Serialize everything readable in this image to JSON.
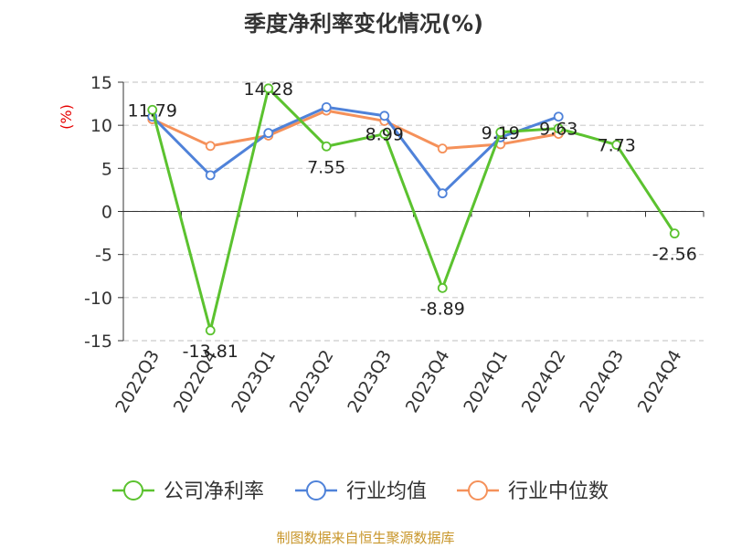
{
  "chart_data": {
    "type": "line",
    "title": "季度净利率变化情况(%)",
    "ylabel": "(%)",
    "xlabel": "",
    "categories": [
      "2022Q3",
      "2022Q4",
      "2023Q1",
      "2023Q2",
      "2023Q3",
      "2023Q4",
      "2024Q1",
      "2024Q2",
      "2024Q3",
      "2024Q4"
    ],
    "ylim": [
      -15,
      15
    ],
    "yticks": [
      15,
      10,
      5,
      0,
      -5,
      -10,
      -15
    ],
    "grid": true,
    "legend_position": "bottom",
    "series": [
      {
        "name": "公司净利率",
        "color": "#5bc22f",
        "values": [
          11.79,
          -13.81,
          14.28,
          7.55,
          8.99,
          -8.89,
          9.19,
          9.63,
          7.73,
          -2.56
        ],
        "labels": [
          "11.79",
          "-13.81",
          "14.28",
          "7.55",
          "8.99",
          "-8.89",
          "9.19",
          "9.63",
          "7.73",
          "-2.56"
        ]
      },
      {
        "name": "行业均值",
        "color": "#4f82d9",
        "values": [
          11.0,
          4.2,
          9.1,
          12.1,
          11.1,
          2.1,
          8.6,
          11.0,
          null,
          null
        ]
      },
      {
        "name": "行业中位数",
        "color": "#f5915a",
        "values": [
          10.7,
          7.6,
          8.8,
          11.7,
          10.5,
          7.3,
          7.8,
          9.0,
          null,
          null
        ]
      }
    ]
  },
  "source_text": "制图数据来自恒生聚源数据库"
}
